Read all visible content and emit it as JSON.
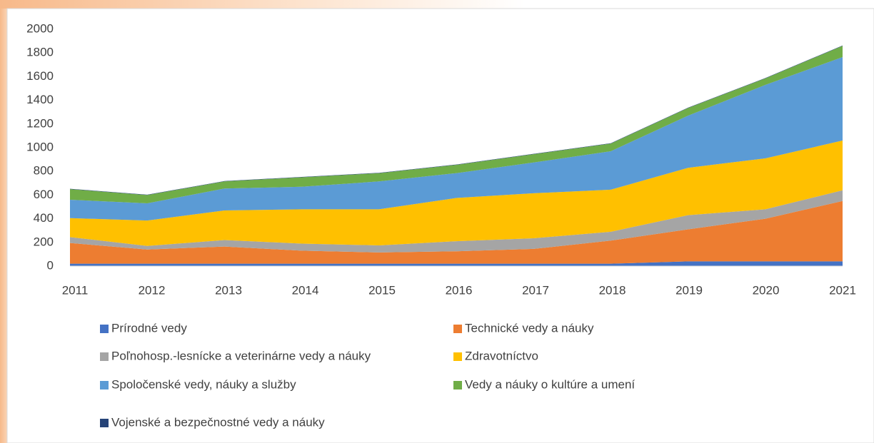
{
  "chart_data": {
    "type": "stacked_area",
    "categories": [
      "2011",
      "2012",
      "2013",
      "2014",
      "2015",
      "2016",
      "2017",
      "2018",
      "2019",
      "2020",
      "2021"
    ],
    "series": [
      {
        "name": "Prírodné vedy",
        "color": "#4472c4",
        "values": [
          20,
          20,
          20,
          20,
          20,
          20,
          20,
          20,
          40,
          40,
          40
        ]
      },
      {
        "name": "Technické vedy a náuky",
        "color": "#ed7d31",
        "values": [
          175,
          120,
          145,
          110,
          95,
          105,
          125,
          195,
          270,
          360,
          510
        ]
      },
      {
        "name": "Poľnohosp.-lesnícke a veterinárne vedy a náuky",
        "color": "#a5a5a5",
        "values": [
          50,
          30,
          55,
          60,
          60,
          85,
          90,
          75,
          120,
          80,
          90
        ]
      },
      {
        "name": "Zdravotníctvo",
        "color": "#ffc000",
        "values": [
          160,
          215,
          250,
          290,
          305,
          365,
          380,
          355,
          400,
          430,
          420
        ]
      },
      {
        "name": "Spoločenské vedy, náuky a služby",
        "color": "#5b9bd5",
        "values": [
          155,
          145,
          185,
          190,
          235,
          210,
          260,
          325,
          440,
          620,
          705
        ]
      },
      {
        "name": "Vedy a náuky o kultúre a umení",
        "color": "#70ad47",
        "values": [
          90,
          70,
          60,
          80,
          70,
          70,
          70,
          65,
          65,
          55,
          95
        ]
      },
      {
        "name": "Vojenské a bezpečnostné vedy a náuky",
        "color": "#264478",
        "values": [
          3,
          3,
          3,
          3,
          3,
          3,
          3,
          3,
          3,
          3,
          3
        ]
      }
    ],
    "ylim": [
      0,
      2000
    ],
    "yticks": [
      0,
      200,
      400,
      600,
      800,
      1000,
      1200,
      1400,
      1600,
      1800,
      2000
    ],
    "legend": "bottom"
  }
}
